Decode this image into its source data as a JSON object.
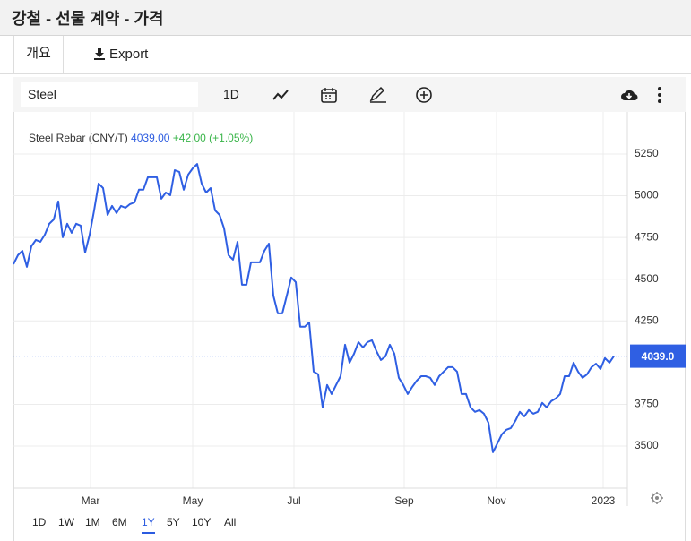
{
  "header": {
    "title": "강철 - 선물 계약 - 가격"
  },
  "tabs": [
    "개요",
    "Export"
  ],
  "toolbar": {
    "symbol": "Steel",
    "interval": "1D"
  },
  "legend": {
    "price": "4039.00",
    "change": "+42.00",
    "change_pct": "(+1.05%)"
  },
  "ranges": [
    "1D",
    "1W",
    "1M",
    "6M",
    "1Y",
    "5Y",
    "10Y",
    "All"
  ],
  "active_range": 4,
  "chart_data": {
    "type": "line",
    "series": [
      {
        "name": "Steel Rebar (CNY/T)",
        "color": "#2f5fe3",
        "values": [
          4590,
          4644,
          4670,
          4574,
          4697,
          4735,
          4724,
          4767,
          4832,
          4858,
          4966,
          4751,
          4832,
          4778,
          4832,
          4821,
          4660,
          4767,
          4912,
          5073,
          5046,
          4885,
          4939,
          4896,
          4939,
          4928,
          4950,
          4960,
          5036,
          5036,
          5111,
          5111,
          5111,
          4982,
          5019,
          5003,
          5153,
          5143,
          5036,
          5127,
          5164,
          5190,
          5073,
          5019,
          5046,
          4912,
          4885,
          4805,
          4644,
          4617,
          4724,
          4467,
          4467,
          4601,
          4601,
          4601,
          4670,
          4713,
          4402,
          4295,
          4295,
          4402,
          4510,
          4483,
          4215,
          4215,
          4241,
          3946,
          3930,
          3732,
          3866,
          3812,
          3866,
          3919,
          4107,
          4000,
          4053,
          4123,
          4091,
          4123,
          4134,
          4069,
          4016,
          4037,
          4107,
          4053,
          3909,
          3866,
          3812,
          3855,
          3892,
          3919,
          3919,
          3909,
          3866,
          3919,
          3946,
          3973,
          3973,
          3946,
          3812,
          3812,
          3732,
          3705,
          3716,
          3694,
          3640,
          3463,
          3517,
          3571,
          3598,
          3608,
          3651,
          3705,
          3678,
          3716,
          3694,
          3705,
          3759,
          3732,
          3769,
          3785,
          3812,
          3919,
          3919,
          4000,
          3946,
          3909,
          3930,
          3973,
          3994,
          3962,
          4027,
          4000,
          4039
        ]
      }
    ],
    "ylim": [
      3248,
      5502
    ],
    "yticks": [
      3500,
      3750,
      4250,
      4500,
      4750,
      5000,
      5250
    ],
    "xlim": [
      0,
      137
    ],
    "xticks": [
      {
        "value": 17.2,
        "label": "Mar"
      },
      {
        "value": 40,
        "label": "May"
      },
      {
        "value": 62.6,
        "label": "Jul"
      },
      {
        "value": 87.2,
        "label": "Sep"
      },
      {
        "value": 107.8,
        "label": "Nov"
      },
      {
        "value": 131.6,
        "label": "2023"
      }
    ],
    "grid": true,
    "last_value": {
      "value": 4039,
      "label": "4039.0"
    }
  }
}
